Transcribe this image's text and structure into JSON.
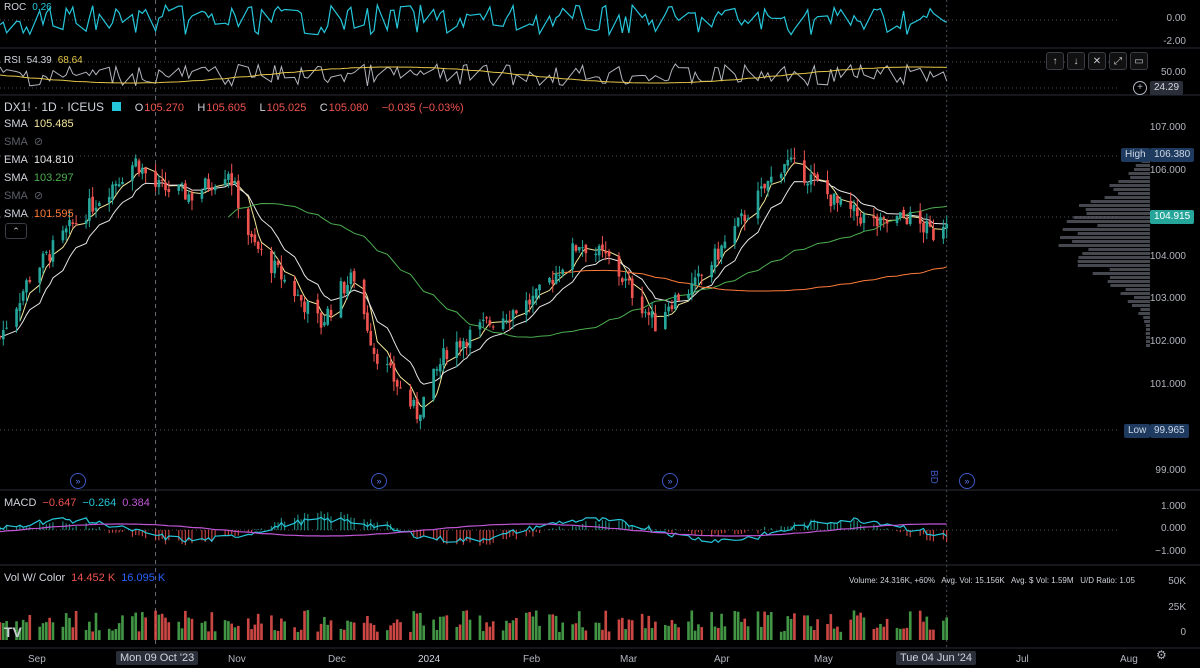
{
  "roc": {
    "name": "ROC",
    "value": "0.26",
    "ticks": [
      "0.00",
      "-2.00"
    ]
  },
  "rsi": {
    "name": "RSI",
    "v1": "54.39",
    "v2": "68.64",
    "ticks": [
      "50.00",
      "24.29"
    ]
  },
  "header": {
    "symbol": "DX1! · 1D · ICEUS",
    "o_label": "O",
    "o": "105.270",
    "h_label": "H",
    "h": "105.605",
    "l_label": "L",
    "l": "105.025",
    "c_label": "C",
    "c": "105.080",
    "change": "−0.035 (−0.03%)"
  },
  "ma_legend": [
    {
      "name": "SMA",
      "value": "105.485",
      "color": "#f5e79a"
    },
    {
      "name": "SMA",
      "value": "",
      "hidden": true
    },
    {
      "name": "EMA",
      "value": "104.810",
      "color": "#e6e6e6"
    },
    {
      "name": "SMA",
      "value": "103.297",
      "color": "#4caf50"
    },
    {
      "name": "SMA",
      "value": "",
      "hidden": true
    },
    {
      "name": "SMA",
      "value": "101.595",
      "color": "#ff7b39"
    }
  ],
  "price_axis": [
    "107.000",
    "106.000",
    "104.000",
    "103.000",
    "102.000",
    "101.000",
    "99.000"
  ],
  "price_tags": {
    "high_label": "High",
    "high": "106.380",
    "current": "104.915",
    "low_label": "Low",
    "low": "99.965"
  },
  "macd": {
    "name": "MACD",
    "v1": "−0.647",
    "v2": "−0.264",
    "v3": "0.384",
    "ticks": [
      "1.000",
      "0.000",
      "−1.000"
    ]
  },
  "volume": {
    "name": "Vol W/ Color",
    "v1": "14.452 K",
    "v2": "16.095 K",
    "stats": "Volume: 24.316K, +60%   Avg. Vol: 15.156K   Avg. $ Vol: 1.59M   U/D Ratio: 1.05",
    "ticks": [
      "50K",
      "25K",
      "0"
    ]
  },
  "x_axis": [
    "Sep",
    "Nov",
    "Dec",
    "2024",
    "Feb",
    "Mar",
    "Apr",
    "May",
    "Jul",
    "Aug"
  ],
  "crosshair_x": "Mon 09 Oct '23",
  "crosshair_x2": "Tue 04 Jun '24",
  "marker_label": "BD",
  "colors": {
    "up": "#26a69a",
    "down": "#ef5350",
    "roc": "#26c6da",
    "macd": "#26c6da",
    "signal": "#c056d6",
    "volup": "#4caf50",
    "voldown": "#ef5350"
  },
  "chart_data": {
    "type": "candlestick",
    "title": "DX1! · 1D · ICEUS",
    "ylim": [
      99,
      107.3
    ],
    "x_start": "2023-08-23",
    "x_end": "2024-08-15",
    "close_series": [
      {
        "date": "2023-08-23",
        "close": 102.1
      },
      {
        "date": "2023-09-01",
        "close": 103.5
      },
      {
        "date": "2023-09-15",
        "close": 104.8
      },
      {
        "date": "2023-10-03",
        "close": 106.2
      },
      {
        "date": "2023-10-09",
        "close": 105.6
      },
      {
        "date": "2023-10-20",
        "close": 105.4
      },
      {
        "date": "2023-10-31",
        "close": 106.0
      },
      {
        "date": "2023-11-07",
        "close": 104.3
      },
      {
        "date": "2023-11-15",
        "close": 103.6
      },
      {
        "date": "2023-11-28",
        "close": 102.4
      },
      {
        "date": "2023-12-04",
        "close": 103.2
      },
      {
        "date": "2023-12-08",
        "close": 103.5
      },
      {
        "date": "2023-12-14",
        "close": 101.8
      },
      {
        "date": "2023-12-27",
        "close": 100.3
      },
      {
        "date": "2024-01-05",
        "close": 101.8
      },
      {
        "date": "2024-01-17",
        "close": 102.4
      },
      {
        "date": "2024-02-01",
        "close": 103.0
      },
      {
        "date": "2024-02-14",
        "close": 104.3
      },
      {
        "date": "2024-02-23",
        "close": 103.9
      },
      {
        "date": "2024-03-08",
        "close": 102.4
      },
      {
        "date": "2024-03-12",
        "close": 102.9
      },
      {
        "date": "2024-03-20",
        "close": 103.3
      },
      {
        "date": "2024-04-01",
        "close": 104.6
      },
      {
        "date": "2024-04-16",
        "close": 106.2
      },
      {
        "date": "2024-04-24",
        "close": 105.8
      },
      {
        "date": "2024-05-03",
        "close": 105.1
      },
      {
        "date": "2024-05-15",
        "close": 104.7
      },
      {
        "date": "2024-05-23",
        "close": 104.9
      },
      {
        "date": "2024-05-31",
        "close": 104.5
      },
      {
        "date": "2024-06-04",
        "close": 104.9
      }
    ]
  }
}
